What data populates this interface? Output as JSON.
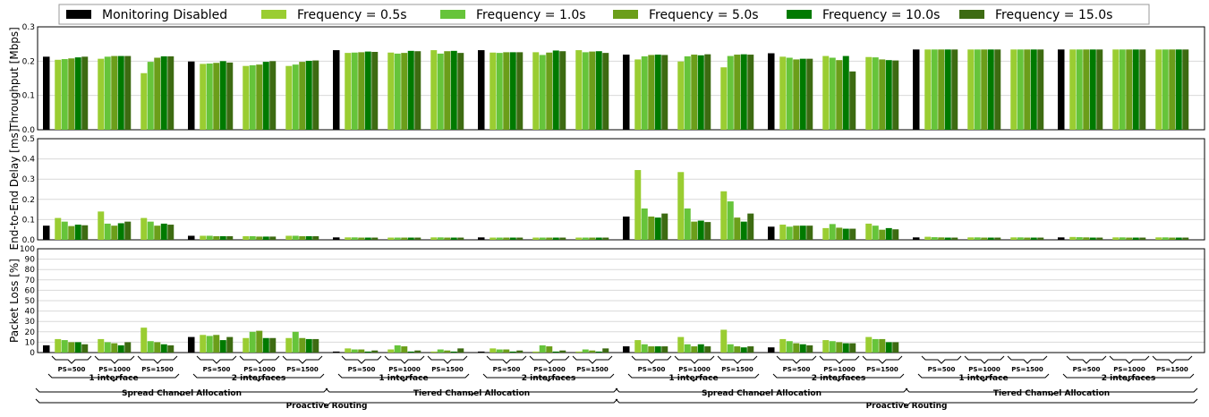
{
  "chart_data": {
    "type": "bar",
    "legend": {
      "placement": "top",
      "entries": [
        "Monitoring Disabled",
        "Frequency = 0.5s",
        "Frequency = 1.0s",
        "Frequency = 5.0s",
        "Frequency = 10.0s",
        "Frequency = 15.0s"
      ]
    },
    "colors": [
      "#000000",
      "#9acd32",
      "#66c43a",
      "#6b9e1a",
      "#007a00",
      "#3d6b12"
    ],
    "panels": [
      {
        "ylabel": "Throughput [Mbps]",
        "ylim": [
          0,
          0.3
        ],
        "yticks": [
          "0.0",
          "0.1",
          "0.2",
          "0.3"
        ],
        "grid": true,
        "baseline": [
          0.213,
          0.199,
          0.232,
          0.232,
          0.219,
          0.223,
          0.234,
          0.234
        ],
        "groups": [
          [
            0.204,
            0.206,
            0.208,
            0.211,
            0.213
          ],
          [
            0.207,
            0.213,
            0.215,
            0.215,
            0.215
          ],
          [
            0.165,
            0.198,
            0.21,
            0.214,
            0.214
          ],
          [
            0.192,
            0.193,
            0.195,
            0.2,
            0.196
          ],
          [
            0.186,
            0.188,
            0.19,
            0.198,
            0.2
          ],
          [
            0.186,
            0.19,
            0.198,
            0.201,
            0.202
          ],
          [
            0.224,
            0.225,
            0.226,
            0.228,
            0.227
          ],
          [
            0.225,
            0.222,
            0.224,
            0.23,
            0.229
          ],
          [
            0.232,
            0.222,
            0.229,
            0.23,
            0.224
          ],
          [
            0.225,
            0.224,
            0.226,
            0.226,
            0.226
          ],
          [
            0.226,
            0.218,
            0.225,
            0.231,
            0.229
          ],
          [
            0.232,
            0.226,
            0.228,
            0.229,
            0.224
          ],
          [
            0.205,
            0.214,
            0.218,
            0.219,
            0.218
          ],
          [
            0.199,
            0.214,
            0.219,
            0.217,
            0.22
          ],
          [
            0.182,
            0.215,
            0.219,
            0.22,
            0.219
          ],
          [
            0.213,
            0.21,
            0.205,
            0.207,
            0.207
          ],
          [
            0.215,
            0.21,
            0.203,
            0.215,
            0.17
          ],
          [
            0.212,
            0.211,
            0.205,
            0.203,
            0.202
          ],
          [
            0.234,
            0.234,
            0.234,
            0.234,
            0.234
          ],
          [
            0.234,
            0.234,
            0.234,
            0.234,
            0.234
          ],
          [
            0.234,
            0.234,
            0.234,
            0.234,
            0.234
          ],
          [
            0.234,
            0.234,
            0.234,
            0.234,
            0.234
          ],
          [
            0.234,
            0.234,
            0.234,
            0.234,
            0.234
          ],
          [
            0.234,
            0.234,
            0.234,
            0.234,
            0.234
          ]
        ]
      },
      {
        "ylabel": "End-to-End Delay [ms]",
        "ylim": [
          0,
          0.5
        ],
        "yticks": [
          "0.0",
          "0.1",
          "0.2",
          "0.3",
          "0.4",
          "0.5"
        ],
        "grid": true,
        "baseline": [
          0.07,
          0.02,
          0.012,
          0.012,
          0.115,
          0.065,
          0.012,
          0.012
        ],
        "groups": [
          [
            0.108,
            0.09,
            0.068,
            0.075,
            0.072
          ],
          [
            0.14,
            0.08,
            0.07,
            0.082,
            0.09
          ],
          [
            0.108,
            0.09,
            0.07,
            0.08,
            0.075
          ],
          [
            0.02,
            0.02,
            0.018,
            0.018,
            0.018
          ],
          [
            0.018,
            0.018,
            0.016,
            0.016,
            0.016
          ],
          [
            0.02,
            0.02,
            0.018,
            0.018,
            0.018
          ],
          [
            0.012,
            0.012,
            0.011,
            0.011,
            0.011
          ],
          [
            0.011,
            0.011,
            0.011,
            0.011,
            0.011
          ],
          [
            0.012,
            0.012,
            0.011,
            0.011,
            0.011
          ],
          [
            0.011,
            0.011,
            0.011,
            0.011,
            0.011
          ],
          [
            0.011,
            0.011,
            0.011,
            0.011,
            0.011
          ],
          [
            0.011,
            0.011,
            0.011,
            0.011,
            0.011
          ],
          [
            0.345,
            0.155,
            0.115,
            0.11,
            0.13
          ],
          [
            0.335,
            0.155,
            0.09,
            0.095,
            0.088
          ],
          [
            0.24,
            0.19,
            0.11,
            0.09,
            0.13
          ],
          [
            0.075,
            0.065,
            0.07,
            0.07,
            0.07
          ],
          [
            0.058,
            0.078,
            0.06,
            0.055,
            0.055
          ],
          [
            0.08,
            0.07,
            0.05,
            0.058,
            0.052
          ],
          [
            0.015,
            0.013,
            0.012,
            0.011,
            0.011
          ],
          [
            0.012,
            0.012,
            0.011,
            0.011,
            0.011
          ],
          [
            0.012,
            0.012,
            0.011,
            0.011,
            0.011
          ],
          [
            0.014,
            0.013,
            0.012,
            0.011,
            0.011
          ],
          [
            0.012,
            0.012,
            0.011,
            0.011,
            0.011
          ],
          [
            0.012,
            0.012,
            0.011,
            0.011,
            0.011
          ]
        ]
      },
      {
        "ylabel": "Packet Loss [%]",
        "ylim": [
          0,
          100
        ],
        "yticks": [
          "0",
          "10",
          "20",
          "30",
          "40",
          "50",
          "60",
          "70",
          "80",
          "90",
          "100"
        ],
        "grid": true,
        "baseline": [
          7,
          15,
          1,
          1,
          6,
          5,
          0,
          0
        ],
        "groups": [
          [
            13,
            12,
            10,
            10,
            8
          ],
          [
            13,
            10,
            9,
            7,
            10
          ],
          [
            24,
            11,
            10,
            8,
            7
          ],
          [
            17,
            16,
            17,
            12,
            15
          ],
          [
            14,
            20,
            21,
            14,
            14
          ],
          [
            14,
            20,
            14,
            13,
            13
          ],
          [
            4,
            3,
            3,
            1,
            2
          ],
          [
            3,
            7,
            6,
            1,
            2
          ],
          [
            1,
            3,
            2,
            1,
            4
          ],
          [
            4,
            3,
            3,
            1,
            2
          ],
          [
            1,
            7,
            6,
            1,
            2
          ],
          [
            1,
            3,
            2,
            1,
            4
          ],
          [
            12,
            8,
            6,
            6,
            6
          ],
          [
            15,
            8,
            6,
            8,
            6
          ],
          [
            22,
            8,
            6,
            5,
            6
          ],
          [
            13,
            11,
            9,
            8,
            7
          ],
          [
            12,
            11,
            10,
            9,
            9
          ],
          [
            15,
            13,
            13,
            10,
            10
          ],
          [
            0,
            0,
            0,
            0,
            0
          ],
          [
            0,
            0,
            0,
            0,
            0
          ],
          [
            0,
            0,
            0,
            0,
            0
          ],
          [
            0,
            0,
            0,
            0,
            0
          ],
          [
            0,
            0,
            0,
            0,
            0
          ],
          [
            0,
            0,
            0,
            0,
            0
          ]
        ]
      }
    ],
    "group_labels": [
      "PS=500",
      "PS=1000",
      "PS=1500"
    ],
    "interface_labels": [
      "1 interface",
      "2 interfaces"
    ],
    "allocation_labels": [
      "Spread Channel Allocation",
      "Tiered Channel Allocation"
    ],
    "routing_labels": [
      "Proactive Routing",
      "Proactive Routing"
    ]
  }
}
